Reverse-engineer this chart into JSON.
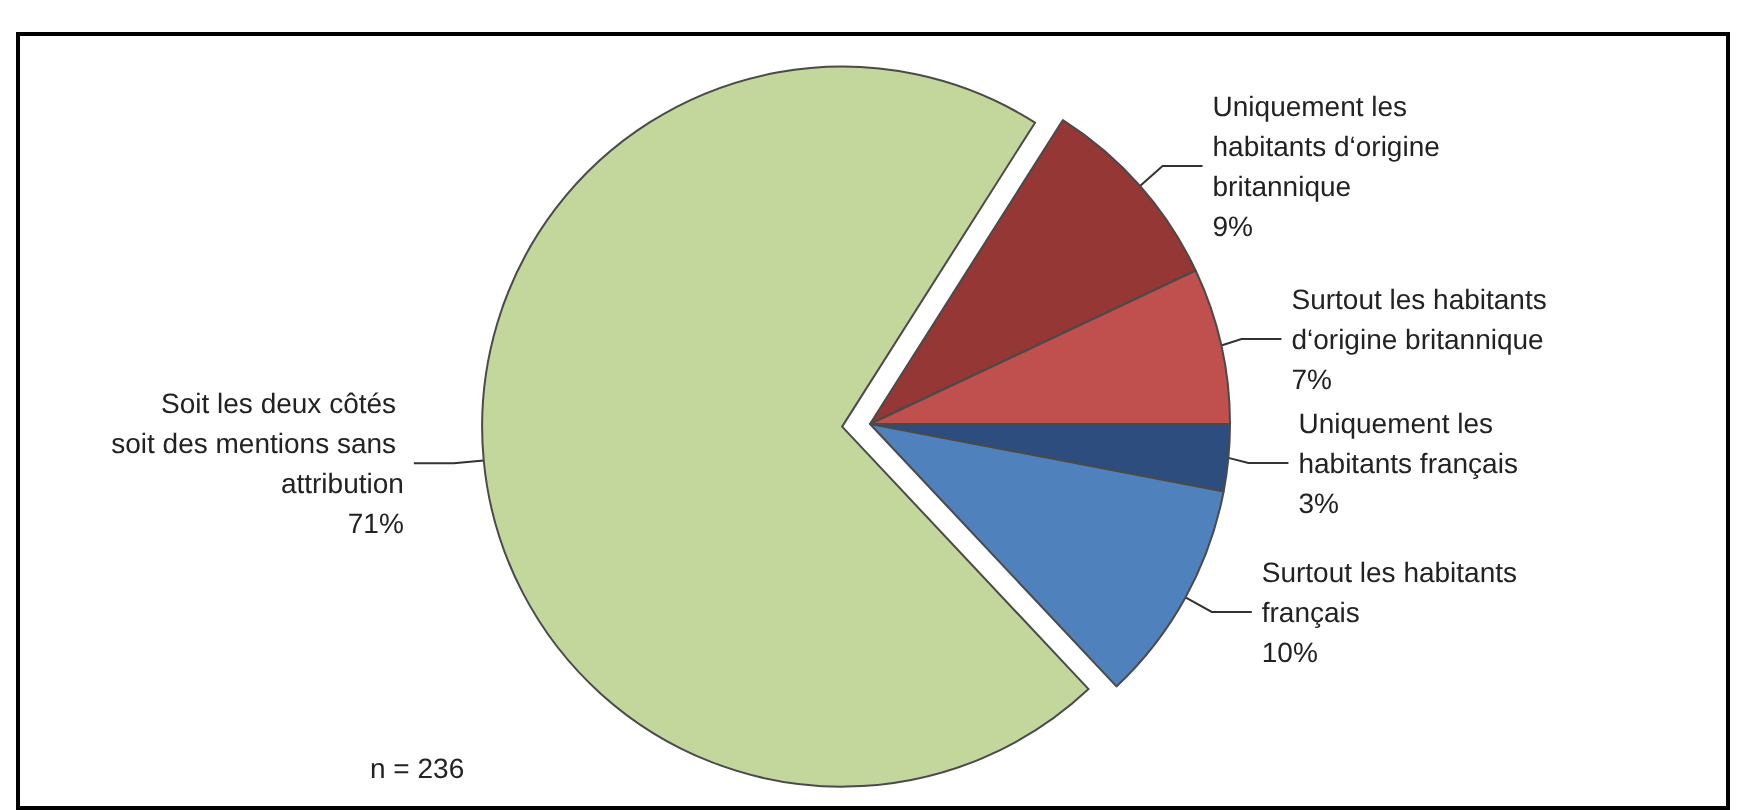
{
  "chart_data": {
    "type": "pie",
    "categories": [
      "Uniquement les habitants français",
      "Surtout les habitants français",
      "Soit les deux côtés soit des mentions sans attribution",
      "Uniquement les habitants d‘origine britannique",
      "Surtout les habitants d‘origine britannique"
    ],
    "values": [
      3,
      10,
      71,
      9,
      7
    ],
    "value_labels": [
      "3%",
      "10%",
      "71%",
      "9%",
      "7%"
    ],
    "colors": [
      "#2c4d7e",
      "#4f81bd",
      "#c3d69b",
      "#953735",
      "#c0504d"
    ],
    "annotations": [
      "n = 236"
    ],
    "legend": false
  }
}
